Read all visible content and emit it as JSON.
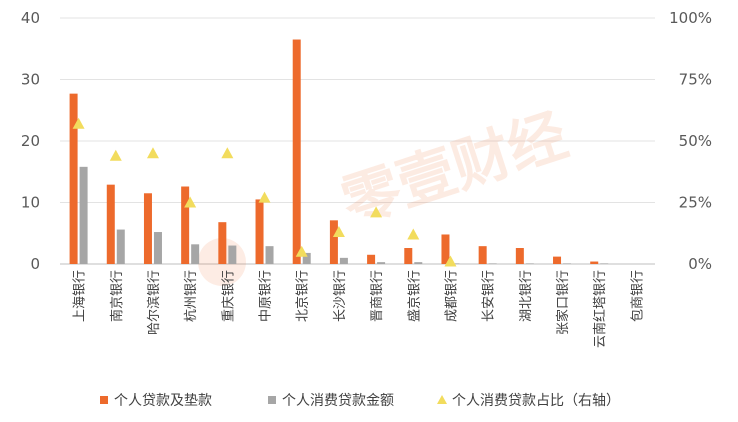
{
  "chart_data": {
    "type": "bar",
    "categories": [
      "上海银行",
      "南京银行",
      "哈尔滨银行",
      "杭州银行",
      "重庆银行",
      "中原银行",
      "北京银行",
      "长沙银行",
      "晋商银行",
      "盛京银行",
      "成都银行",
      "长安银行",
      "湖北银行",
      "张家口银行",
      "云南红塔银行",
      "包商银行"
    ],
    "series": [
      {
        "name": "个人贷款及垫款",
        "kind": "bar",
        "axis": "left",
        "color": "#ED6A2C",
        "values": [
          27.7,
          12.9,
          11.5,
          12.6,
          6.8,
          10.5,
          36.5,
          7.1,
          1.5,
          2.6,
          4.8,
          2.9,
          2.6,
          1.2,
          0.4,
          0
        ]
      },
      {
        "name": "个人消费贷款金额",
        "kind": "bar",
        "axis": "left",
        "color": "#A6A6A6",
        "values": [
          15.8,
          5.6,
          5.2,
          3.2,
          3.0,
          2.9,
          1.8,
          1.0,
          0.3,
          0.3,
          0.1,
          0.1,
          0.1,
          0.1,
          0.1,
          0
        ]
      },
      {
        "name": "个人消费贷款占比（右轴）",
        "kind": "marker",
        "axis": "right",
        "color": "#F2DC5D",
        "values": [
          57,
          44,
          45,
          25,
          45,
          27,
          5,
          13,
          21,
          12,
          1,
          null,
          null,
          null,
          null,
          null
        ]
      }
    ],
    "y_left": {
      "min": 0,
      "max": 40,
      "ticks": [
        "0",
        "10",
        "20",
        "30",
        "40"
      ]
    },
    "y_right": {
      "min": 0,
      "max": 100,
      "ticks": [
        "0%",
        "25%",
        "50%",
        "75%",
        "100%"
      ]
    },
    "grid": true,
    "legend_position": "bottom",
    "watermark": "零壹财经"
  }
}
